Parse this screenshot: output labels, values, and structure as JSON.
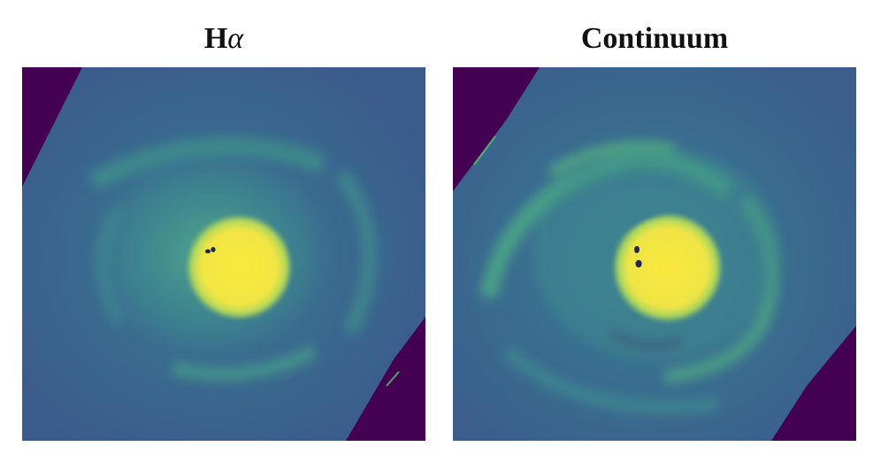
{
  "panels": [
    {
      "title_main": "H",
      "title_greek": "α",
      "colormap": [
        "#440154",
        "#3b528b",
        "#21918c",
        "#5ec962",
        "#fde725"
      ]
    },
    {
      "title_main": "Continuum",
      "title_greek": "",
      "colormap": [
        "#440154",
        "#3b528b",
        "#21918c",
        "#5ec962",
        "#fde725"
      ]
    }
  ]
}
